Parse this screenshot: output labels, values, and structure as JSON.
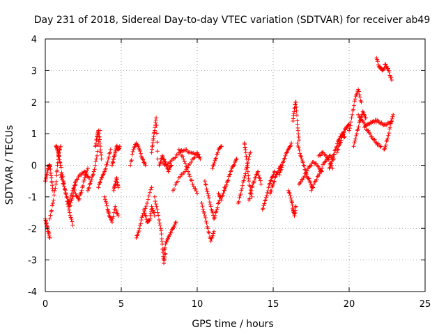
{
  "chart_data": {
    "type": "scatter",
    "title": "Day 231 of 2018, Sidereal Day-to-day VTEC variation (SDTVAR) for receiver ab49",
    "xlabel": "GPS time / hours",
    "ylabel": "SDTVAR / TECUs",
    "xlim": [
      0,
      25
    ],
    "ylim": [
      -4,
      4
    ],
    "xticks": [
      "0",
      "5",
      "10",
      "15",
      "20",
      "25"
    ],
    "yticks": [
      "-4",
      "-3",
      "-2",
      "-1",
      "0",
      "1",
      "2",
      "3",
      "4"
    ],
    "grid": true,
    "marker": "+",
    "series_color": "#ff0000",
    "segments": [
      {
        "x": [
          0.0,
          0.1,
          0.2,
          0.3,
          0.4,
          0.5
        ],
        "y": [
          -0.5,
          -0.3,
          -0.1,
          0.0,
          -0.4,
          -0.8
        ]
      },
      {
        "x": [
          0.0,
          0.1,
          0.2,
          0.3
        ],
        "y": [
          -1.7,
          -1.9,
          -2.1,
          -2.3
        ]
      },
      {
        "x": [
          0.3,
          0.5,
          0.7,
          0.8,
          0.9,
          1.0
        ],
        "y": [
          -1.7,
          -1.2,
          -0.6,
          0.0,
          0.4,
          0.6
        ]
      },
      {
        "x": [
          0.7,
          0.8,
          0.9,
          1.0,
          1.2,
          1.4,
          1.6,
          1.8
        ],
        "y": [
          0.6,
          0.5,
          0.3,
          0.0,
          -0.5,
          -1.0,
          -1.5,
          -1.9
        ]
      },
      {
        "x": [
          1.0,
          1.2,
          1.4,
          1.6,
          1.8,
          2.0
        ],
        "y": [
          -0.3,
          -0.6,
          -1.0,
          -1.3,
          -1.0,
          -0.6
        ]
      },
      {
        "x": [
          1.5,
          1.8,
          2.0,
          2.3,
          2.6,
          2.9
        ],
        "y": [
          -1.2,
          -0.8,
          -0.5,
          -0.3,
          -0.2,
          -0.4
        ]
      },
      {
        "x": [
          2.0,
          2.2,
          2.4,
          2.6,
          2.8
        ],
        "y": [
          -0.9,
          -1.1,
          -0.8,
          -0.4,
          -0.1
        ]
      },
      {
        "x": [
          2.8,
          3.0,
          3.2,
          3.4,
          3.6
        ],
        "y": [
          -0.8,
          -0.5,
          -0.2,
          0.3,
          1.1
        ]
      },
      {
        "x": [
          3.3,
          3.4,
          3.5,
          3.6,
          3.7
        ],
        "y": [
          0.6,
          0.9,
          1.1,
          0.7,
          0.2
        ]
      },
      {
        "x": [
          3.5,
          3.7,
          3.9,
          4.1,
          4.3
        ],
        "y": [
          -0.7,
          -0.4,
          -0.2,
          0.1,
          0.5
        ]
      },
      {
        "x": [
          3.9,
          4.1,
          4.2,
          4.4,
          4.6,
          4.8
        ],
        "y": [
          -1.0,
          -1.4,
          -1.6,
          -1.8,
          -1.3,
          -1.6
        ]
      },
      {
        "x": [
          4.4,
          4.5,
          4.6,
          4.7,
          4.8,
          4.9
        ],
        "y": [
          0.0,
          0.2,
          0.4,
          0.6,
          0.5,
          0.6
        ]
      },
      {
        "x": [
          4.5,
          4.6,
          4.7,
          4.8
        ],
        "y": [
          -0.8,
          -0.6,
          -0.4,
          -0.7
        ]
      },
      {
        "x": [
          5.6,
          5.8,
          6.0,
          6.2,
          6.4,
          6.6
        ],
        "y": [
          0.0,
          0.5,
          0.7,
          0.5,
          0.2,
          0.0
        ]
      },
      {
        "x": [
          6.0,
          6.2,
          6.4,
          6.7,
          7.0
        ],
        "y": [
          -2.3,
          -2.0,
          -1.6,
          -1.2,
          -0.7
        ]
      },
      {
        "x": [
          6.5,
          6.7,
          6.9,
          7.0,
          7.2
        ],
        "y": [
          -1.4,
          -1.8,
          -1.7,
          -1.3,
          -1.6
        ]
      },
      {
        "x": [
          7.0,
          7.1,
          7.2,
          7.3,
          7.4
        ],
        "y": [
          0.4,
          0.8,
          1.1,
          1.5,
          0.2
        ]
      },
      {
        "x": [
          7.2,
          7.4,
          7.6,
          7.7,
          7.8,
          7.9
        ],
        "y": [
          -1.0,
          -1.5,
          -2.0,
          -2.5,
          -3.1,
          -2.8
        ]
      },
      {
        "x": [
          7.8,
          8.0,
          8.2,
          8.4,
          8.6
        ],
        "y": [
          -2.7,
          -2.4,
          -2.2,
          -2.0,
          -1.8
        ]
      },
      {
        "x": [
          7.5,
          7.7,
          7.9,
          8.1,
          8.3
        ],
        "y": [
          0.0,
          0.3,
          0.1,
          -0.2,
          0.0
        ]
      },
      {
        "x": [
          7.6,
          8.0,
          8.4,
          8.8,
          9.2,
          9.6,
          10.0
        ],
        "y": [
          0.1,
          0.0,
          0.2,
          0.4,
          0.5,
          0.4,
          0.3
        ]
      },
      {
        "x": [
          8.4,
          8.8,
          9.2,
          9.6,
          10.0,
          10.2
        ],
        "y": [
          -0.8,
          -0.4,
          -0.2,
          0.1,
          0.4,
          0.2
        ]
      },
      {
        "x": [
          8.8,
          9.1,
          9.4,
          9.7,
          10.0
        ],
        "y": [
          0.5,
          0.2,
          -0.2,
          -0.6,
          -0.9
        ]
      },
      {
        "x": [
          10.3,
          10.5,
          10.7,
          10.9,
          11.1
        ],
        "y": [
          -1.2,
          -1.6,
          -2.0,
          -2.4,
          -2.1
        ]
      },
      {
        "x": [
          10.5,
          10.7,
          10.9,
          11.1,
          11.3,
          11.5
        ],
        "y": [
          -0.5,
          -0.9,
          -1.3,
          -1.7,
          -1.4,
          -1.0
        ]
      },
      {
        "x": [
          11.0,
          11.2,
          11.4,
          11.6
        ],
        "y": [
          -0.1,
          0.2,
          0.5,
          0.6
        ]
      },
      {
        "x": [
          11.4,
          11.6,
          11.8
        ],
        "y": [
          -0.9,
          -1.1,
          -0.7
        ]
      },
      {
        "x": [
          11.8,
          12.0,
          12.2,
          12.4,
          12.6
        ],
        "y": [
          -0.8,
          -0.5,
          -0.2,
          0.0,
          0.2
        ]
      },
      {
        "x": [
          12.7,
          12.9,
          13.1,
          13.3,
          13.5
        ],
        "y": [
          -1.2,
          -0.8,
          -0.4,
          0.0,
          0.4
        ]
      },
      {
        "x": [
          13.1,
          13.2,
          13.3,
          13.4,
          13.6
        ],
        "y": [
          0.7,
          0.4,
          0.0,
          -0.5,
          -1.0
        ]
      },
      {
        "x": [
          13.4,
          13.6,
          13.8,
          14.0,
          14.2
        ],
        "y": [
          -1.1,
          -0.7,
          -0.4,
          -0.2,
          -0.6
        ]
      },
      {
        "x": [
          14.3,
          14.5,
          14.7,
          14.9,
          15.1
        ],
        "y": [
          -1.4,
          -1.1,
          -0.7,
          -0.4,
          -0.2
        ]
      },
      {
        "x": [
          14.8,
          15.0,
          15.2,
          15.4,
          15.6
        ],
        "y": [
          -0.9,
          -0.6,
          -0.3,
          -0.1,
          0.0
        ]
      },
      {
        "x": [
          15.4,
          15.6,
          15.8,
          16.0,
          16.2
        ],
        "y": [
          -0.3,
          0.0,
          0.3,
          0.5,
          0.7
        ]
      },
      {
        "x": [
          16.0,
          16.2,
          16.3,
          16.4,
          16.5
        ],
        "y": [
          -0.8,
          -1.1,
          -1.4,
          -1.6,
          -1.3
        ]
      },
      {
        "x": [
          16.3,
          16.4,
          16.5,
          16.6,
          16.7
        ],
        "y": [
          1.4,
          1.8,
          2.0,
          1.3,
          0.8
        ]
      },
      {
        "x": [
          16.6,
          16.8,
          17.0,
          17.2,
          17.4,
          17.6
        ],
        "y": [
          0.7,
          0.3,
          0.0,
          -0.3,
          -0.5,
          -0.7
        ]
      },
      {
        "x": [
          16.7,
          17.0,
          17.3,
          17.6,
          17.9,
          18.2
        ],
        "y": [
          -0.6,
          -0.4,
          -0.1,
          0.1,
          0.0,
          -0.2
        ]
      },
      {
        "x": [
          17.5,
          17.8,
          18.1,
          18.4,
          18.7,
          19.0
        ],
        "y": [
          -0.8,
          -0.5,
          -0.2,
          0.1,
          0.3,
          0.2
        ]
      },
      {
        "x": [
          18.0,
          18.3,
          18.6,
          18.9
        ],
        "y": [
          0.3,
          0.4,
          0.2,
          -0.1
        ]
      },
      {
        "x": [
          18.7,
          18.9,
          19.1,
          19.3,
          19.5,
          19.7
        ],
        "y": [
          -0.1,
          0.2,
          0.5,
          0.8,
          1.0,
          0.9
        ]
      },
      {
        "x": [
          19.2,
          19.4,
          19.6,
          19.8,
          20.0
        ],
        "y": [
          0.4,
          0.7,
          1.0,
          1.2,
          1.3
        ]
      },
      {
        "x": [
          20.0,
          20.2,
          20.4,
          20.6,
          20.8
        ],
        "y": [
          1.1,
          1.6,
          2.1,
          2.4,
          2.0
        ]
      },
      {
        "x": [
          20.3,
          20.5,
          20.7,
          20.9,
          21.1
        ],
        "y": [
          0.6,
          1.0,
          1.4,
          1.7,
          1.5
        ]
      },
      {
        "x": [
          20.6,
          20.9,
          21.2,
          21.5,
          21.8,
          22.1
        ],
        "y": [
          1.6,
          1.4,
          1.1,
          0.9,
          0.7,
          0.6
        ]
      },
      {
        "x": [
          21.0,
          21.3,
          21.6,
          21.9,
          22.2,
          22.5,
          22.8
        ],
        "y": [
          1.2,
          1.3,
          1.4,
          1.4,
          1.3,
          1.3,
          1.4
        ]
      },
      {
        "x": [
          21.8,
          22.0,
          22.2,
          22.4,
          22.6,
          22.8
        ],
        "y": [
          3.4,
          3.1,
          3.0,
          3.2,
          3.0,
          2.7
        ]
      },
      {
        "x": [
          22.3,
          22.5,
          22.7,
          22.9
        ],
        "y": [
          0.5,
          0.8,
          1.2,
          1.6
        ]
      }
    ]
  }
}
